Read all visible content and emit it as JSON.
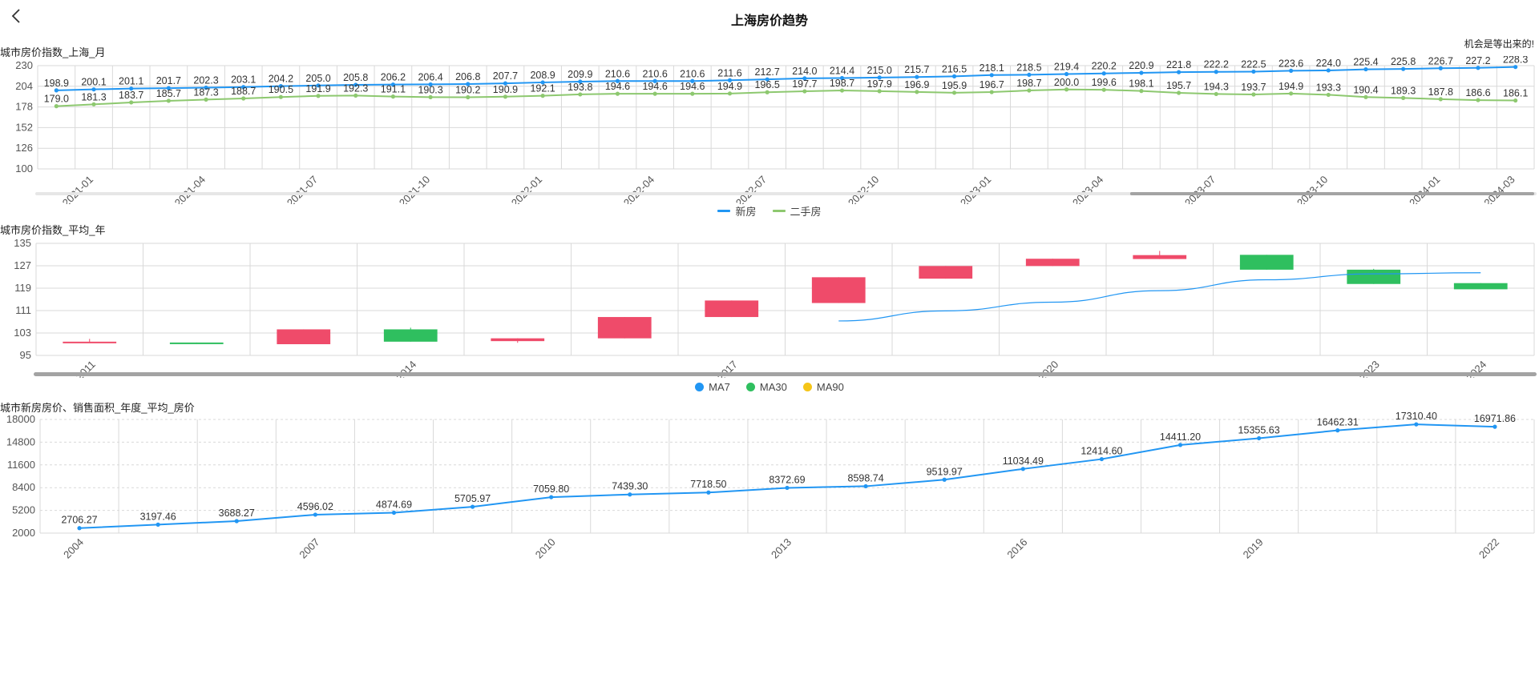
{
  "page": {
    "title": "上海房价趋势",
    "slogan": "机会是等出来的!"
  },
  "charts": {
    "monthly": {
      "title": "城市房价指数_上海_月",
      "legend": [
        {
          "name": "新房",
          "color": "#2196f3"
        },
        {
          "name": "二手房",
          "color": "#8dc86f"
        }
      ]
    },
    "yearly": {
      "title": "城市房价指数_平均_年",
      "legend": [
        {
          "name": "MA7",
          "color": "#2196f3"
        },
        {
          "name": "MA30",
          "color": "#2fbf5f"
        },
        {
          "name": "MA90",
          "color": "#f5c518"
        }
      ]
    },
    "annual_price": {
      "title": "城市新房房价、销售面积_年度_平均_房价"
    }
  },
  "colors": {
    "new_house": "#2196f3",
    "second_house": "#8dc86f",
    "candle_up": "#ef4b6a",
    "candle_down": "#2fbf5f",
    "ma_line": "#2196f3",
    "grid": "#d9d9d9",
    "slider_track": "#e6e6e6",
    "slider_handle": "#a3a3a3"
  },
  "chart_data": [
    {
      "type": "line",
      "title": "城市房价指数_上海_月",
      "ylim": [
        100,
        230
      ],
      "yticks": [
        100,
        126,
        152,
        178,
        204,
        230
      ],
      "x": [
        "2020-12",
        "2021-01",
        "2021-02",
        "2021-03",
        "2021-04",
        "2021-05",
        "2021-06",
        "2021-07",
        "2021-08",
        "2021-09",
        "2021-10",
        "2021-11",
        "2021-12",
        "2022-01",
        "2022-02",
        "2022-03",
        "2022-04",
        "2022-05",
        "2022-06",
        "2022-07",
        "2022-08",
        "2022-09",
        "2022-10",
        "2022-11",
        "2022-12",
        "2023-01",
        "2023-02",
        "2023-03",
        "2023-04",
        "2023-05",
        "2023-06",
        "2023-07",
        "2023-08",
        "2023-09",
        "2023-10",
        "2023-11",
        "2023-12",
        "2024-01",
        "2024-02",
        "2024-03"
      ],
      "xticks_shown": [
        "2021-01",
        "2021-04",
        "2021-07",
        "2021-10",
        "2022-01",
        "2022-04",
        "2022-07",
        "2022-10",
        "2023-01",
        "2023-04",
        "2023-07",
        "2023-10",
        "2024-01",
        "2024-03"
      ],
      "series": [
        {
          "name": "新房",
          "values": [
            198.9,
            200.1,
            201.1,
            201.7,
            202.3,
            203.1,
            204.2,
            205.0,
            205.8,
            206.2,
            206.4,
            206.8,
            207.7,
            208.9,
            209.9,
            210.6,
            210.6,
            210.6,
            211.6,
            212.7,
            214.0,
            214.4,
            215.0,
            215.7,
            216.5,
            218.1,
            218.5,
            219.4,
            220.2,
            220.9,
            221.8,
            222.2,
            222.5,
            223.6,
            224.0,
            225.4,
            225.8,
            226.7,
            227.2,
            228.3
          ]
        },
        {
          "name": "二手房",
          "values": [
            179.0,
            181.3,
            183.7,
            185.7,
            187.3,
            188.7,
            190.5,
            191.9,
            192.3,
            191.1,
            190.3,
            190.2,
            190.9,
            192.1,
            193.8,
            194.6,
            194.6,
            194.6,
            194.9,
            196.5,
            197.7,
            198.7,
            197.9,
            196.9,
            195.9,
            196.7,
            198.7,
            200.0,
            199.6,
            198.1,
            195.7,
            194.3,
            193.7,
            194.9,
            193.3,
            190.4,
            189.3,
            187.8,
            186.6,
            186.1
          ]
        }
      ],
      "zoom_range": [
        0.73,
        1.0
      ]
    },
    {
      "type": "candlestick",
      "title": "城市房价指数_平均_年",
      "ylim": [
        95,
        135
      ],
      "yticks": [
        95,
        103,
        111,
        119,
        127,
        135
      ],
      "categories": [
        "2011",
        "2012",
        "2013",
        "2014",
        "2015",
        "2016",
        "2017",
        "2018",
        "2019",
        "2020",
        "2021",
        "2022",
        "2023",
        "2024"
      ],
      "xticks_shown": [
        "2011",
        "2014",
        "2017",
        "2020",
        "2023",
        "2024"
      ],
      "candles": [
        {
          "open": 99.7,
          "close": 99.9,
          "low": 99.7,
          "high": 100.9
        },
        {
          "open": 99.6,
          "close": 99.3,
          "low": 99.1,
          "high": 99.6
        },
        {
          "open": 99.0,
          "close": 104.3,
          "low": 99.0,
          "high": 104.3
        },
        {
          "open": 104.3,
          "close": 99.9,
          "low": 99.9,
          "high": 104.9
        },
        {
          "open": 100.1,
          "close": 101.1,
          "low": 99.5,
          "high": 101.1
        },
        {
          "open": 101.1,
          "close": 108.7,
          "low": 101.1,
          "high": 108.7
        },
        {
          "open": 108.7,
          "close": 114.6,
          "low": 108.7,
          "high": 114.6
        },
        {
          "open": 113.7,
          "close": 122.9,
          "low": 113.7,
          "high": 122.9
        },
        {
          "open": 122.4,
          "close": 126.9,
          "low": 122.4,
          "high": 126.9
        },
        {
          "open": 126.9,
          "close": 129.5,
          "low": 126.9,
          "high": 129.5
        },
        {
          "open": 129.4,
          "close": 130.8,
          "low": 129.4,
          "high": 132.3
        },
        {
          "open": 130.9,
          "close": 125.6,
          "low": 125.6,
          "high": 130.9
        },
        {
          "open": 125.6,
          "close": 120.5,
          "low": 120.5,
          "high": 125.9
        },
        {
          "open": 120.8,
          "close": 118.6,
          "low": 118.6,
          "high": 120.8
        }
      ],
      "ma_series": [
        {
          "name": "MA7",
          "values": [
            null,
            null,
            null,
            null,
            null,
            null,
            null,
            107.3,
            110.9,
            114.0,
            118.1,
            122.0,
            124.1,
            124.5
          ]
        }
      ]
    },
    {
      "type": "line",
      "title": "城市新房房价、销售面积_年度_平均_房价",
      "ylim": [
        2000,
        18000
      ],
      "yticks": [
        2000,
        5200,
        8400,
        11600,
        14800,
        18000
      ],
      "x": [
        "2004",
        "2005",
        "2006",
        "2007",
        "2008",
        "2009",
        "2010",
        "2011",
        "2012",
        "2013",
        "2014",
        "2015",
        "2016",
        "2017",
        "2018",
        "2019",
        "2020",
        "2021",
        "2022"
      ],
      "xticks_shown": [
        "2004",
        "2007",
        "2010",
        "2013",
        "2016",
        "2019",
        "2022"
      ],
      "series": [
        {
          "name": "",
          "values": [
            2706.27,
            3197.46,
            3688.27,
            4596.02,
            4874.69,
            5705.97,
            7059.8,
            7439.3,
            7718.5,
            8372.69,
            8598.74,
            9519.97,
            11034.49,
            12414.6,
            14411.2,
            15355.63,
            16462.31,
            17310.4,
            16971.86
          ]
        }
      ],
      "labels": [
        "2706.27",
        "3197.46",
        "3688.27",
        "4596.02",
        "4874.69",
        "5705.97",
        "7059.80",
        "7439.30",
        "7718.50",
        "8372.69",
        "8598.74",
        "9519.97",
        "11034.49",
        "12414.60",
        "14411.20",
        "15355.63",
        "16462.31",
        "17310.40",
        "16971.86"
      ]
    }
  ]
}
